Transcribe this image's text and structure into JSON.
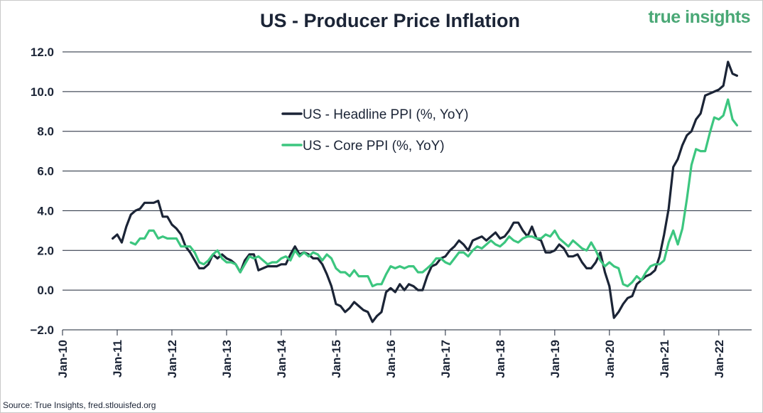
{
  "brand": "true insights",
  "source": "Source: True Insights, fred.stlouisfed.org",
  "colors": {
    "headline": "#1b2436",
    "core": "#3cc67f",
    "grid": "#1b2436",
    "text": "#1b2436"
  },
  "chart_data": {
    "type": "line",
    "title": "US - Producer Price Inflation",
    "xlabel": "",
    "ylabel": "",
    "ylim": [
      -2.0,
      12.0
    ],
    "yticks": [
      "-2.0",
      "0.0",
      "2.0",
      "4.0",
      "6.0",
      "8.0",
      "10.0",
      "12.0"
    ],
    "xticks": [
      "Jan-10",
      "Jan-11",
      "Jan-12",
      "Jan-13",
      "Jan-14",
      "Jan-15",
      "Jan-16",
      "Jan-17",
      "Jan-18",
      "Jan-19",
      "Jan-20",
      "Jan-21",
      "Jan-22"
    ],
    "legend_position": "upper-middle",
    "series": [
      {
        "name": "US - Headline PPI (%, YoY)",
        "color": "#1b2436",
        "x": [
          2010.917,
          2011.0,
          2011.083,
          2011.167,
          2011.25,
          2011.333,
          2011.417,
          2011.5,
          2011.583,
          2011.667,
          2011.75,
          2011.833,
          2011.917,
          2012.0,
          2012.083,
          2012.167,
          2012.25,
          2012.333,
          2012.417,
          2012.5,
          2012.583,
          2012.667,
          2012.75,
          2012.833,
          2012.917,
          2013.0,
          2013.083,
          2013.167,
          2013.25,
          2013.333,
          2013.417,
          2013.5,
          2013.583,
          2013.667,
          2013.75,
          2013.833,
          2013.917,
          2014.0,
          2014.083,
          2014.167,
          2014.25,
          2014.333,
          2014.417,
          2014.5,
          2014.583,
          2014.667,
          2014.75,
          2014.833,
          2014.917,
          2015.0,
          2015.083,
          2015.167,
          2015.25,
          2015.333,
          2015.417,
          2015.5,
          2015.583,
          2015.667,
          2015.75,
          2015.833,
          2015.917,
          2016.0,
          2016.083,
          2016.167,
          2016.25,
          2016.333,
          2016.417,
          2016.5,
          2016.583,
          2016.667,
          2016.75,
          2016.833,
          2016.917,
          2017.0,
          2017.083,
          2017.167,
          2017.25,
          2017.333,
          2017.417,
          2017.5,
          2017.583,
          2017.667,
          2017.75,
          2017.833,
          2017.917,
          2018.0,
          2018.083,
          2018.167,
          2018.25,
          2018.333,
          2018.417,
          2018.5,
          2018.583,
          2018.667,
          2018.75,
          2018.833,
          2018.917,
          2019.0,
          2019.083,
          2019.167,
          2019.25,
          2019.333,
          2019.417,
          2019.5,
          2019.583,
          2019.667,
          2019.75,
          2019.833,
          2019.917,
          2020.0,
          2020.083,
          2020.167,
          2020.25,
          2020.333,
          2020.417,
          2020.5,
          2020.583,
          2020.667,
          2020.75,
          2020.833,
          2020.917,
          2021.0,
          2021.083,
          2021.167,
          2021.25,
          2021.333,
          2021.417,
          2021.5,
          2021.583,
          2021.667,
          2021.75,
          2021.833,
          2021.917,
          2022.0,
          2022.083,
          2022.167,
          2022.25,
          2022.333
        ],
        "values": [
          2.6,
          2.8,
          2.4,
          3.2,
          3.8,
          4.0,
          4.1,
          4.4,
          4.4,
          4.4,
          4.5,
          3.7,
          3.7,
          3.3,
          3.1,
          2.8,
          2.2,
          1.9,
          1.5,
          1.1,
          1.1,
          1.3,
          1.8,
          1.6,
          1.8,
          1.6,
          1.5,
          1.3,
          0.9,
          1.5,
          1.8,
          1.8,
          1.0,
          1.1,
          1.2,
          1.2,
          1.2,
          1.3,
          1.3,
          1.8,
          2.2,
          1.8,
          1.9,
          1.8,
          1.6,
          1.6,
          1.3,
          0.8,
          0.2,
          -0.7,
          -0.8,
          -1.1,
          -0.9,
          -0.6,
          -0.8,
          -1.0,
          -1.1,
          -1.6,
          -1.3,
          -1.1,
          -0.1,
          0.1,
          -0.1,
          0.3,
          0.0,
          0.3,
          0.2,
          0.0,
          0.0,
          0.7,
          1.2,
          1.3,
          1.6,
          1.7,
          2.0,
          2.2,
          2.5,
          2.3,
          2.0,
          2.5,
          2.6,
          2.7,
          2.5,
          2.7,
          2.9,
          2.6,
          2.7,
          3.0,
          3.4,
          3.4,
          3.0,
          2.7,
          3.2,
          2.6,
          2.5,
          1.9,
          1.9,
          2.0,
          2.3,
          2.1,
          1.7,
          1.7,
          1.8,
          1.4,
          1.1,
          1.1,
          1.4,
          1.9,
          0.9,
          0.2,
          -1.4,
          -1.1,
          -0.7,
          -0.4,
          -0.3,
          0.3,
          0.5,
          0.7,
          0.8,
          1.0,
          1.7,
          2.8,
          4.1,
          6.2,
          6.6,
          7.3,
          7.8,
          8.0,
          8.6,
          8.9,
          9.8,
          9.9,
          10.0,
          10.1,
          10.3,
          11.5,
          10.9,
          10.8
        ],
        "start_label": "late 2010"
      },
      {
        "name": "US - Core PPI (%, YoY)",
        "color": "#3cc67f",
        "x": [
          2011.25,
          2011.333,
          2011.417,
          2011.5,
          2011.583,
          2011.667,
          2011.75,
          2011.833,
          2011.917,
          2012.0,
          2012.083,
          2012.167,
          2012.25,
          2012.333,
          2012.417,
          2012.5,
          2012.583,
          2012.667,
          2012.75,
          2012.833,
          2012.917,
          2013.0,
          2013.083,
          2013.167,
          2013.25,
          2013.333,
          2013.417,
          2013.5,
          2013.583,
          2013.667,
          2013.75,
          2013.833,
          2013.917,
          2014.0,
          2014.083,
          2014.167,
          2014.25,
          2014.333,
          2014.417,
          2014.5,
          2014.583,
          2014.667,
          2014.75,
          2014.833,
          2014.917,
          2015.0,
          2015.083,
          2015.167,
          2015.25,
          2015.333,
          2015.417,
          2015.5,
          2015.583,
          2015.667,
          2015.75,
          2015.833,
          2015.917,
          2016.0,
          2016.083,
          2016.167,
          2016.25,
          2016.333,
          2016.417,
          2016.5,
          2016.583,
          2016.667,
          2016.75,
          2016.833,
          2016.917,
          2017.0,
          2017.083,
          2017.167,
          2017.25,
          2017.333,
          2017.417,
          2017.5,
          2017.583,
          2017.667,
          2017.75,
          2017.833,
          2017.917,
          2018.0,
          2018.083,
          2018.167,
          2018.25,
          2018.333,
          2018.417,
          2018.5,
          2018.583,
          2018.667,
          2018.75,
          2018.833,
          2018.917,
          2019.0,
          2019.083,
          2019.167,
          2019.25,
          2019.333,
          2019.417,
          2019.5,
          2019.583,
          2019.667,
          2019.75,
          2019.833,
          2019.917,
          2020.0,
          2020.083,
          2020.167,
          2020.25,
          2020.333,
          2020.417,
          2020.5,
          2020.583,
          2020.667,
          2020.75,
          2020.833,
          2020.917,
          2021.0,
          2021.083,
          2021.167,
          2021.25,
          2021.333,
          2021.417,
          2021.5,
          2021.583,
          2021.667,
          2021.75,
          2021.833,
          2021.917,
          2022.0,
          2022.083,
          2022.167,
          2022.25,
          2022.333
        ],
        "values": [
          2.4,
          2.3,
          2.6,
          2.6,
          3.0,
          3.0,
          2.6,
          2.7,
          2.6,
          2.6,
          2.6,
          2.2,
          2.2,
          2.2,
          1.9,
          1.4,
          1.3,
          1.5,
          1.8,
          2.0,
          1.6,
          1.4,
          1.4,
          1.3,
          0.9,
          1.3,
          1.7,
          1.6,
          1.7,
          1.5,
          1.3,
          1.4,
          1.4,
          1.6,
          1.7,
          1.5,
          2.0,
          1.7,
          1.9,
          1.7,
          1.9,
          1.8,
          1.5,
          1.8,
          1.6,
          1.1,
          0.9,
          0.9,
          0.7,
          1.0,
          0.7,
          0.7,
          0.7,
          0.2,
          0.3,
          0.3,
          0.8,
          1.2,
          1.1,
          1.2,
          1.1,
          1.2,
          1.2,
          0.9,
          0.9,
          1.1,
          1.3,
          1.6,
          1.6,
          1.4,
          1.3,
          1.6,
          1.9,
          1.9,
          1.7,
          2.0,
          2.2,
          2.1,
          2.3,
          2.5,
          2.3,
          2.2,
          2.4,
          2.7,
          2.5,
          2.4,
          2.6,
          2.7,
          2.7,
          2.6,
          2.6,
          2.8,
          2.7,
          3.0,
          2.6,
          2.4,
          2.2,
          2.5,
          2.3,
          2.1,
          2.0,
          2.4,
          2.0,
          1.5,
          1.2,
          1.4,
          1.2,
          1.1,
          0.3,
          0.2,
          0.4,
          0.7,
          0.5,
          0.9,
          1.2,
          1.3,
          1.3,
          1.5,
          2.4,
          3.0,
          2.3,
          3.1,
          4.6,
          6.3,
          7.1,
          7.0,
          7.0,
          7.9,
          8.7,
          8.6,
          8.8,
          9.6,
          8.6,
          8.3
        ]
      }
    ]
  }
}
